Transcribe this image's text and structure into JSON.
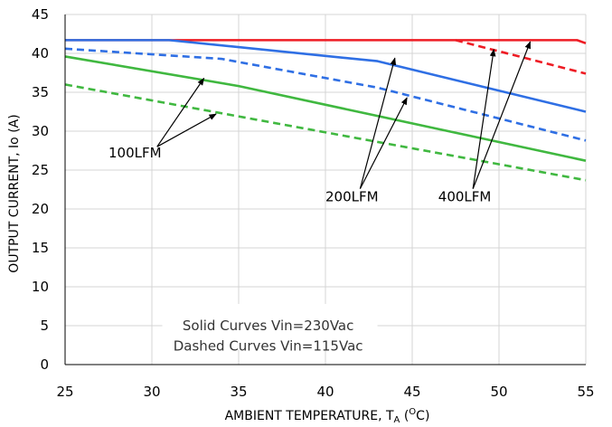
{
  "chart_data": {
    "type": "line",
    "title": "",
    "xlabel": "AMBIENT TEMPERATURE, T",
    "xlabel_sub": "A",
    "xlabel_open": " (",
    "xlabel_sup": "O",
    "xlabel_close": "C)",
    "ylabel": "OUTPUT CURRENT, Io  (A)",
    "xlim": [
      25,
      55
    ],
    "ylim": [
      0,
      45
    ],
    "x_ticks": [
      25,
      30,
      35,
      40,
      45,
      50,
      55
    ],
    "y_ticks": [
      0,
      5,
      10,
      15,
      20,
      25,
      30,
      35,
      40,
      45
    ],
    "grid": true,
    "series": [
      {
        "color": "#ee1c24",
        "dash": false,
        "x": [
          25,
          54.5,
          55
        ],
        "y": [
          41.7,
          41.7,
          41.3
        ]
      },
      {
        "color": "#ee1c24",
        "dash": true,
        "x": [
          47.5,
          55
        ],
        "y": [
          41.7,
          37.4
        ]
      },
      {
        "color": "#2f6fe4",
        "dash": false,
        "x": [
          25,
          31,
          43,
          55
        ],
        "y": [
          41.7,
          41.7,
          39.0,
          32.5
        ]
      },
      {
        "color": "#2f6fe4",
        "dash": true,
        "x": [
          25,
          34,
          43,
          55
        ],
        "y": [
          40.6,
          39.3,
          35.6,
          28.8
        ]
      },
      {
        "color": "#40b840",
        "dash": false,
        "x": [
          25,
          35,
          55
        ],
        "y": [
          39.6,
          35.8,
          26.2
        ]
      },
      {
        "color": "#40b840",
        "dash": true,
        "x": [
          25,
          55
        ],
        "y": [
          36.0,
          23.7
        ]
      }
    ],
    "annotations": [
      {
        "text": "100LFM",
        "x": 27.5,
        "y": 26.6,
        "arrows": [
          [
            30.3,
            28.0,
            33.0,
            36.8
          ],
          [
            30.3,
            28.0,
            33.7,
            32.2
          ]
        ]
      },
      {
        "text": "200LFM",
        "x": 40.0,
        "y": 21.0,
        "arrows": [
          [
            42.0,
            22.6,
            44.0,
            39.4
          ],
          [
            42.0,
            22.6,
            44.7,
            34.3
          ]
        ]
      },
      {
        "text": "400LFM",
        "x": 46.5,
        "y": 21.0,
        "arrows": [
          [
            48.5,
            22.6,
            49.7,
            40.5
          ],
          [
            48.5,
            22.6,
            51.8,
            41.5
          ]
        ]
      }
    ],
    "legend_note": [
      "Solid Curves Vin=230Vac",
      "Dashed Curves Vin=115Vac"
    ]
  }
}
